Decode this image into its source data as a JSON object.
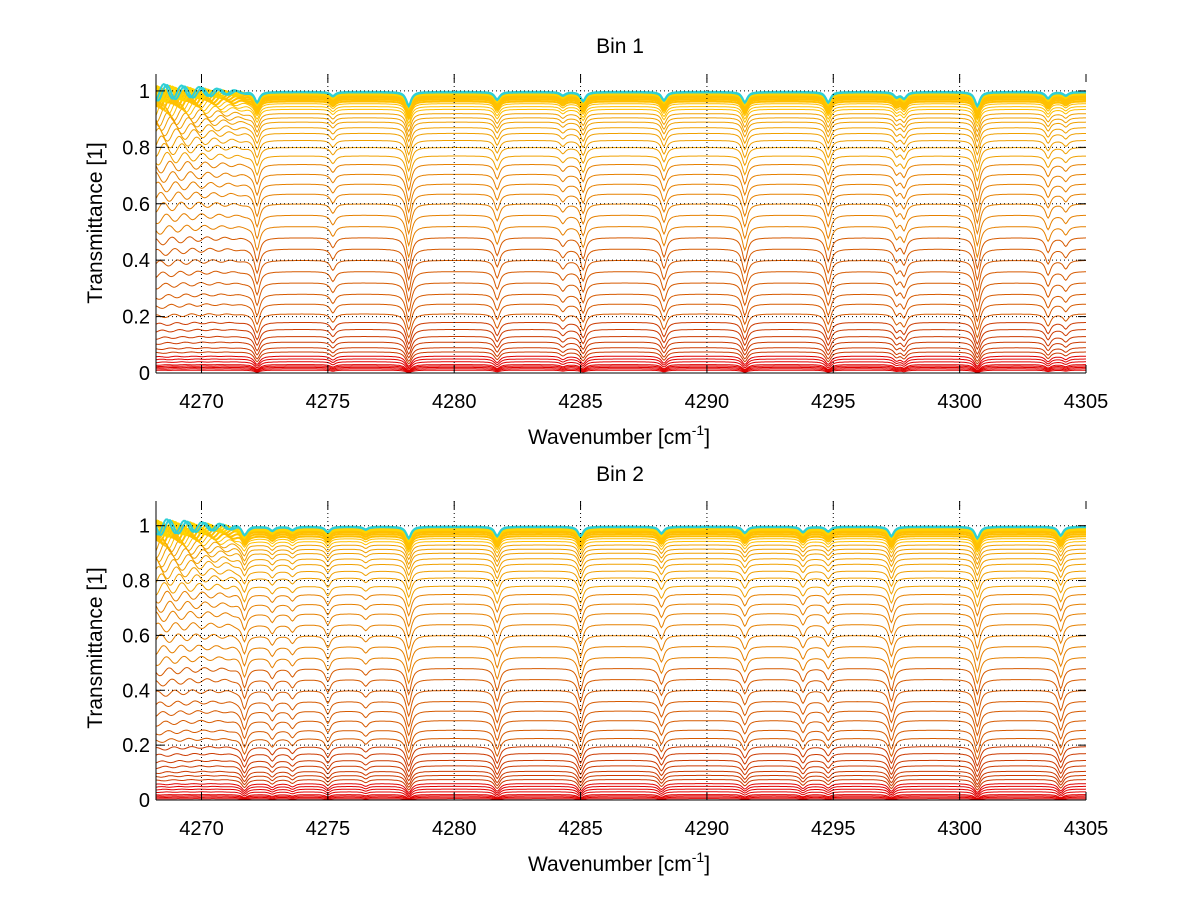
{
  "chart_data": [
    {
      "type": "line",
      "title": "Bin 1",
      "xlabel_main": "Wavenumber [cm",
      "xlabel_sup": "-1",
      "xlabel_close": "]",
      "ylabel": "Transmittance [1]",
      "xlim": [
        4268.2,
        4305
      ],
      "ylim": [
        0,
        1.06
      ],
      "xticks": [
        4270,
        4275,
        4280,
        4285,
        4290,
        4295,
        4300,
        4305
      ],
      "yticks": [
        0,
        0.2,
        0.4,
        0.6,
        0.8,
        1
      ],
      "grid": true,
      "n_series": 70,
      "baseline_levels": [
        0.01,
        0.015,
        0.02,
        0.025,
        0.03,
        0.04,
        0.05,
        0.06,
        0.075,
        0.09,
        0.11,
        0.13,
        0.155,
        0.18,
        0.21,
        0.245,
        0.28,
        0.32,
        0.36,
        0.4,
        0.44,
        0.48,
        0.52,
        0.56,
        0.6,
        0.635,
        0.67,
        0.705,
        0.74,
        0.77,
        0.8,
        0.825,
        0.85,
        0.87,
        0.89,
        0.905,
        0.92,
        0.935,
        0.945,
        0.955,
        0.963,
        0.97,
        0.976,
        0.981,
        0.985,
        0.988,
        0.991,
        0.993,
        0.995,
        0.997
      ],
      "absorption_lines": [
        {
          "x": 4272.2,
          "depth": 0.15
        },
        {
          "x": 4275.2,
          "depth": 0.06
        },
        {
          "x": 4278.2,
          "depth": 0.2
        },
        {
          "x": 4281.7,
          "depth": 0.11
        },
        {
          "x": 4284.3,
          "depth": 0.05
        },
        {
          "x": 4285.1,
          "depth": 0.13
        },
        {
          "x": 4288.3,
          "depth": 0.12
        },
        {
          "x": 4291.5,
          "depth": 0.15
        },
        {
          "x": 4294.8,
          "depth": 0.15
        },
        {
          "x": 4297.5,
          "depth": 0.07
        },
        {
          "x": 4297.8,
          "depth": 0.09
        },
        {
          "x": 4300.7,
          "depth": 0.2
        },
        {
          "x": 4303.5,
          "depth": 0.09
        },
        {
          "x": 4304.2,
          "depth": 0.05
        }
      ]
    },
    {
      "type": "line",
      "title": "Bin 2",
      "xlabel_main": "Wavenumber [cm",
      "xlabel_sup": "-1",
      "xlabel_close": "]",
      "ylabel": "Transmittance [1]",
      "xlim": [
        4268.2,
        4305
      ],
      "ylim": [
        0,
        1.09
      ],
      "xticks": [
        4270,
        4275,
        4280,
        4285,
        4290,
        4295,
        4300,
        4305
      ],
      "yticks": [
        0,
        0.2,
        0.4,
        0.6,
        0.8,
        1
      ],
      "grid": true,
      "n_series": 70,
      "baseline_levels": [
        0.005,
        0.01,
        0.015,
        0.02,
        0.03,
        0.04,
        0.05,
        0.06,
        0.075,
        0.09,
        0.105,
        0.125,
        0.145,
        0.17,
        0.195,
        0.225,
        0.255,
        0.29,
        0.325,
        0.36,
        0.4,
        0.44,
        0.48,
        0.52,
        0.56,
        0.6,
        0.64,
        0.68,
        0.715,
        0.75,
        0.78,
        0.81,
        0.835,
        0.86,
        0.88,
        0.9,
        0.915,
        0.93,
        0.943,
        0.953,
        0.962,
        0.97,
        0.977,
        0.982,
        0.986,
        0.99,
        0.993,
        0.995,
        0.997
      ],
      "absorption_lines": [
        {
          "x": 4271.7,
          "depth": 0.12
        },
        {
          "x": 4272.8,
          "depth": 0.06
        },
        {
          "x": 4273.6,
          "depth": 0.05
        },
        {
          "x": 4275.0,
          "depth": 0.08
        },
        {
          "x": 4276.5,
          "depth": 0.04
        },
        {
          "x": 4278.2,
          "depth": 0.17
        },
        {
          "x": 4281.7,
          "depth": 0.14
        },
        {
          "x": 4285.0,
          "depth": 0.14
        },
        {
          "x": 4288.2,
          "depth": 0.1
        },
        {
          "x": 4291.5,
          "depth": 0.09
        },
        {
          "x": 4293.8,
          "depth": 0.08
        },
        {
          "x": 4294.8,
          "depth": 0.07
        },
        {
          "x": 4297.3,
          "depth": 0.14
        },
        {
          "x": 4300.7,
          "depth": 0.17
        },
        {
          "x": 4304.0,
          "depth": 0.13
        }
      ]
    }
  ]
}
